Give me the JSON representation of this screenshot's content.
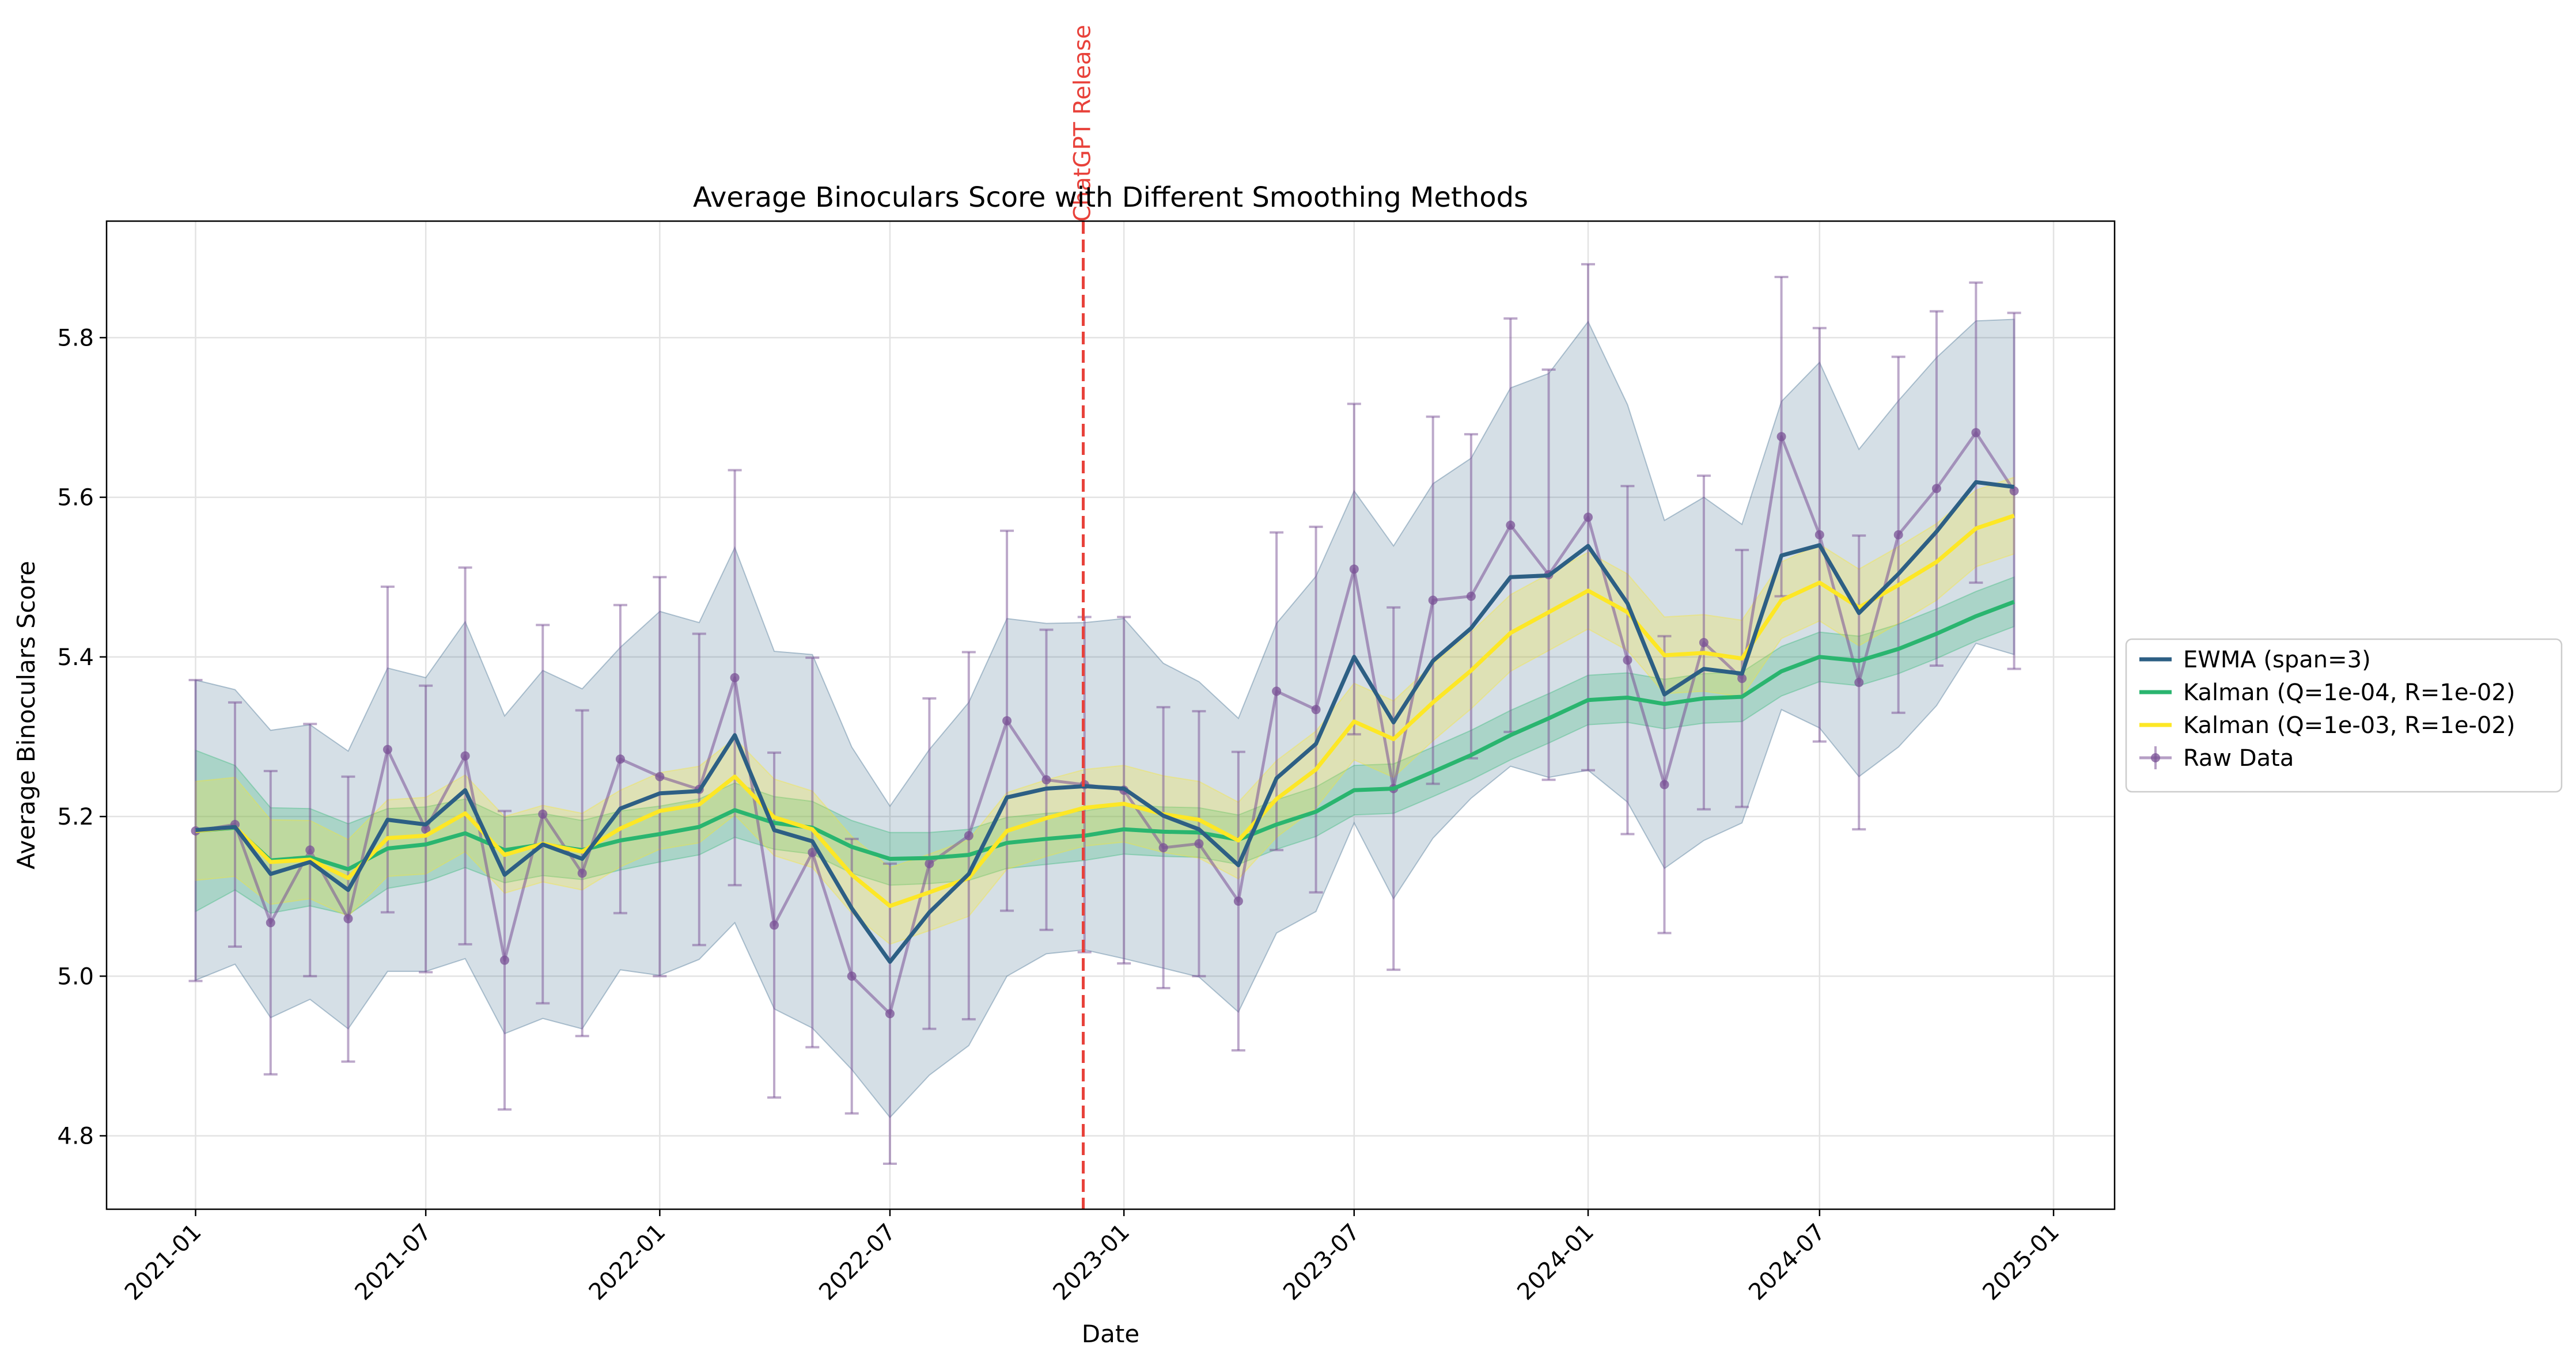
{
  "chart_data": {
    "type": "line",
    "title": "Average Binoculars Score with Different Smoothing Methods",
    "xlabel": "Date",
    "ylabel": "Average Binoculars Score",
    "xlim": [
      "2020-10-23",
      "2025-02-18"
    ],
    "ylim": [
      4.708,
      5.946
    ],
    "x_ticks": [
      "2021-01",
      "2021-07",
      "2022-01",
      "2022-07",
      "2023-01",
      "2023-07",
      "2024-01",
      "2024-07",
      "2025-01"
    ],
    "y_ticks": [
      4.8,
      5.0,
      5.2,
      5.4,
      5.6,
      5.8
    ],
    "grid": true,
    "legend_position": "center-right outside",
    "annotations": [
      {
        "type": "vertical-line",
        "x": "2022-11-30",
        "label": "ChatGPT Release",
        "color": "#e8413a"
      }
    ],
    "x": [
      "2021-01-01",
      "2021-02-01",
      "2021-03-01",
      "2021-04-01",
      "2021-05-01",
      "2021-06-01",
      "2021-07-01",
      "2021-08-01",
      "2021-09-01",
      "2021-10-01",
      "2021-11-01",
      "2021-12-01",
      "2022-01-01",
      "2022-02-01",
      "2022-03-01",
      "2022-04-01",
      "2022-05-01",
      "2022-06-01",
      "2022-07-01",
      "2022-08-01",
      "2022-09-01",
      "2022-10-01",
      "2022-11-01",
      "2022-12-01",
      "2023-01-01",
      "2023-02-01",
      "2023-03-01",
      "2023-04-01",
      "2023-05-01",
      "2023-06-01",
      "2023-07-01",
      "2023-08-01",
      "2023-09-01",
      "2023-10-01",
      "2023-11-01",
      "2023-12-01",
      "2024-01-01",
      "2024-02-01",
      "2024-03-01",
      "2024-04-01",
      "2024-05-01",
      "2024-06-01",
      "2024-07-01",
      "2024-08-01",
      "2024-09-01",
      "2024-10-01",
      "2024-11-01",
      "2024-12-01"
    ],
    "series": [
      {
        "name": "EWMA (span=3)",
        "color": "#2d5f84",
        "values": [
          5.183,
          5.187,
          5.128,
          5.143,
          5.108,
          5.196,
          5.19,
          5.233,
          5.127,
          5.165,
          5.147,
          5.21,
          5.229,
          5.232,
          5.302,
          5.183,
          5.169,
          5.085,
          5.018,
          5.08,
          5.128,
          5.224,
          5.235,
          5.238,
          5.235,
          5.201,
          5.184,
          5.139,
          5.248,
          5.291,
          5.4,
          5.318,
          5.395,
          5.436,
          5.5,
          5.502,
          5.539,
          5.467,
          5.353,
          5.385,
          5.379,
          5.527,
          5.54,
          5.455,
          5.504,
          5.557,
          5.619,
          5.613
        ],
        "band": [
          [
            4.995,
            5.371
          ],
          [
            5.015,
            5.359
          ],
          [
            4.948,
            5.308
          ],
          [
            4.971,
            5.315
          ],
          [
            4.934,
            5.282
          ],
          [
            5.006,
            5.386
          ],
          [
            5.006,
            5.374
          ],
          [
            5.022,
            5.444
          ],
          [
            4.928,
            5.326
          ],
          [
            4.947,
            5.383
          ],
          [
            4.934,
            5.36
          ],
          [
            5.008,
            5.412
          ],
          [
            5.001,
            5.457
          ],
          [
            5.021,
            5.443
          ],
          [
            5.067,
            5.537
          ],
          [
            4.959,
            5.407
          ],
          [
            4.935,
            5.403
          ],
          [
            4.883,
            5.287
          ],
          [
            4.823,
            5.213
          ],
          [
            4.876,
            5.284
          ],
          [
            4.913,
            5.343
          ],
          [
            5.0,
            5.448
          ],
          [
            5.028,
            5.442
          ],
          [
            5.033,
            5.443
          ],
          [
            5.022,
            5.448
          ],
          [
            5.01,
            5.392
          ],
          [
            4.999,
            5.369
          ],
          [
            4.955,
            5.323
          ],
          [
            5.054,
            5.442
          ],
          [
            5.081,
            5.501
          ],
          [
            5.192,
            5.608
          ],
          [
            5.097,
            5.539
          ],
          [
            5.173,
            5.617
          ],
          [
            5.223,
            5.649
          ],
          [
            5.263,
            5.737
          ],
          [
            5.249,
            5.755
          ],
          [
            5.258,
            5.82
          ],
          [
            5.218,
            5.716
          ],
          [
            5.135,
            5.571
          ],
          [
            5.17,
            5.6
          ],
          [
            5.192,
            5.566
          ],
          [
            5.334,
            5.72
          ],
          [
            5.311,
            5.769
          ],
          [
            5.25,
            5.66
          ],
          [
            5.287,
            5.721
          ],
          [
            5.339,
            5.775
          ],
          [
            5.417,
            5.821
          ],
          [
            5.403,
            5.823
          ]
        ]
      },
      {
        "name": "Kalman (Q=1e-04, R=1e-02)",
        "color": "#2ab56f",
        "values": [
          5.182,
          5.186,
          5.145,
          5.149,
          5.134,
          5.16,
          5.165,
          5.179,
          5.158,
          5.165,
          5.158,
          5.17,
          5.178,
          5.187,
          5.208,
          5.192,
          5.186,
          5.162,
          5.147,
          5.148,
          5.152,
          5.167,
          5.172,
          5.176,
          5.184,
          5.181,
          5.18,
          5.171,
          5.19,
          5.206,
          5.233,
          5.235,
          5.256,
          5.277,
          5.302,
          5.323,
          5.346,
          5.349,
          5.341,
          5.348,
          5.35,
          5.382,
          5.4,
          5.395,
          5.41,
          5.429,
          5.451,
          5.469
        ],
        "band": [
          [
            5.081,
            5.283
          ],
          [
            5.108,
            5.264
          ],
          [
            5.079,
            5.211
          ],
          [
            5.088,
            5.21
          ],
          [
            5.077,
            5.191
          ],
          [
            5.11,
            5.21
          ],
          [
            5.118,
            5.212
          ],
          [
            5.136,
            5.222
          ],
          [
            5.117,
            5.199
          ],
          [
            5.126,
            5.204
          ],
          [
            5.121,
            5.195
          ],
          [
            5.133,
            5.207
          ],
          [
            5.143,
            5.213
          ],
          [
            5.152,
            5.222
          ],
          [
            5.174,
            5.242
          ],
          [
            5.159,
            5.225
          ],
          [
            5.153,
            5.219
          ],
          [
            5.129,
            5.195
          ],
          [
            5.114,
            5.18
          ],
          [
            5.116,
            5.18
          ],
          [
            5.12,
            5.184
          ],
          [
            5.135,
            5.199
          ],
          [
            5.14,
            5.204
          ],
          [
            5.145,
            5.207
          ],
          [
            5.153,
            5.215
          ],
          [
            5.15,
            5.212
          ],
          [
            5.149,
            5.211
          ],
          [
            5.14,
            5.202
          ],
          [
            5.159,
            5.221
          ],
          [
            5.175,
            5.237
          ],
          [
            5.202,
            5.264
          ],
          [
            5.204,
            5.266
          ],
          [
            5.225,
            5.287
          ],
          [
            5.246,
            5.308
          ],
          [
            5.271,
            5.333
          ],
          [
            5.292,
            5.354
          ],
          [
            5.315,
            5.377
          ],
          [
            5.318,
            5.38
          ],
          [
            5.31,
            5.372
          ],
          [
            5.317,
            5.379
          ],
          [
            5.319,
            5.381
          ],
          [
            5.351,
            5.413
          ],
          [
            5.369,
            5.431
          ],
          [
            5.364,
            5.426
          ],
          [
            5.379,
            5.441
          ],
          [
            5.398,
            5.46
          ],
          [
            5.42,
            5.482
          ],
          [
            5.438,
            5.5
          ]
        ]
      },
      {
        "name": "Kalman (Q=1e-03, R=1e-02)",
        "color": "#fde725",
        "values": [
          5.182,
          5.187,
          5.143,
          5.146,
          5.123,
          5.173,
          5.176,
          5.204,
          5.152,
          5.166,
          5.156,
          5.185,
          5.207,
          5.215,
          5.25,
          5.199,
          5.184,
          5.127,
          5.088,
          5.105,
          5.123,
          5.182,
          5.198,
          5.211,
          5.216,
          5.203,
          5.196,
          5.17,
          5.222,
          5.259,
          5.319,
          5.297,
          5.343,
          5.383,
          5.43,
          5.456,
          5.483,
          5.456,
          5.402,
          5.405,
          5.398,
          5.471,
          5.493,
          5.462,
          5.49,
          5.519,
          5.561,
          5.577
        ],
        "band": [
          [
            5.12,
            5.244
          ],
          [
            5.125,
            5.249
          ],
          [
            5.09,
            5.196
          ],
          [
            5.097,
            5.195
          ],
          [
            5.075,
            5.171
          ],
          [
            5.125,
            5.221
          ],
          [
            5.128,
            5.224
          ],
          [
            5.156,
            5.252
          ],
          [
            5.104,
            5.2
          ],
          [
            5.118,
            5.214
          ],
          [
            5.108,
            5.204
          ],
          [
            5.137,
            5.233
          ],
          [
            5.159,
            5.255
          ],
          [
            5.167,
            5.263
          ],
          [
            5.202,
            5.298
          ],
          [
            5.151,
            5.247
          ],
          [
            5.136,
            5.232
          ],
          [
            5.079,
            5.175
          ],
          [
            5.04,
            5.136
          ],
          [
            5.057,
            5.153
          ],
          [
            5.075,
            5.171
          ],
          [
            5.134,
            5.23
          ],
          [
            5.15,
            5.246
          ],
          [
            5.163,
            5.259
          ],
          [
            5.168,
            5.264
          ],
          [
            5.155,
            5.251
          ],
          [
            5.148,
            5.244
          ],
          [
            5.122,
            5.218
          ],
          [
            5.174,
            5.27
          ],
          [
            5.211,
            5.307
          ],
          [
            5.271,
            5.367
          ],
          [
            5.249,
            5.345
          ],
          [
            5.295,
            5.391
          ],
          [
            5.335,
            5.431
          ],
          [
            5.382,
            5.478
          ],
          [
            5.408,
            5.504
          ],
          [
            5.435,
            5.531
          ],
          [
            5.408,
            5.504
          ],
          [
            5.354,
            5.45
          ],
          [
            5.357,
            5.453
          ],
          [
            5.35,
            5.446
          ],
          [
            5.423,
            5.519
          ],
          [
            5.445,
            5.541
          ],
          [
            5.414,
            5.51
          ],
          [
            5.442,
            5.538
          ],
          [
            5.471,
            5.567
          ],
          [
            5.513,
            5.609
          ],
          [
            5.529,
            5.625
          ]
        ]
      },
      {
        "name": "Raw Data",
        "color": "#7a5195",
        "values": [
          5.182,
          5.19,
          5.067,
          5.158,
          5.072,
          5.284,
          5.184,
          5.276,
          5.02,
          5.203,
          5.129,
          5.272,
          5.25,
          5.234,
          5.374,
          5.064,
          5.155,
          5.0,
          4.953,
          5.141,
          5.176,
          5.32,
          5.246,
          5.24,
          5.233,
          5.161,
          5.166,
          5.094,
          5.357,
          5.334,
          5.51,
          5.235,
          5.471,
          5.476,
          5.565,
          5.503,
          5.575,
          5.396,
          5.24,
          5.418,
          5.373,
          5.676,
          5.553,
          5.368,
          5.553,
          5.611,
          5.681,
          5.608
        ],
        "error": [
          [
            4.994,
            5.371
          ],
          [
            5.037,
            5.343
          ],
          [
            4.877,
            5.257
          ],
          [
            5.0,
            5.316
          ],
          [
            4.893,
            5.25
          ],
          [
            5.08,
            5.488
          ],
          [
            5.005,
            5.364
          ],
          [
            5.04,
            5.512
          ],
          [
            4.833,
            5.207
          ],
          [
            4.966,
            5.44
          ],
          [
            4.925,
            5.333
          ],
          [
            5.079,
            5.465
          ],
          [
            5.0,
            5.5
          ],
          [
            5.039,
            5.429
          ],
          [
            5.114,
            5.634
          ],
          [
            4.848,
            5.28
          ],
          [
            4.911,
            5.399
          ],
          [
            4.828,
            5.172
          ],
          [
            4.765,
            5.141
          ],
          [
            4.934,
            5.348
          ],
          [
            4.946,
            5.406
          ],
          [
            5.082,
            5.558
          ],
          [
            5.058,
            5.434
          ],
          [
            5.03,
            5.45
          ],
          [
            5.016,
            5.45
          ],
          [
            4.985,
            5.337
          ],
          [
            5.0,
            5.332
          ],
          [
            4.907,
            5.281
          ],
          [
            5.158,
            5.556
          ],
          [
            5.105,
            5.563
          ],
          [
            5.303,
            5.717
          ],
          [
            5.008,
            5.462
          ],
          [
            5.241,
            5.701
          ],
          [
            5.273,
            5.679
          ],
          [
            5.306,
            5.824
          ],
          [
            5.246,
            5.76
          ],
          [
            5.258,
            5.892
          ],
          [
            5.178,
            5.614
          ],
          [
            5.054,
            5.426
          ],
          [
            5.209,
            5.627
          ],
          [
            5.212,
            5.534
          ],
          [
            5.476,
            5.876
          ],
          [
            5.294,
            5.812
          ],
          [
            5.184,
            5.552
          ],
          [
            5.33,
            5.776
          ],
          [
            5.389,
            5.833
          ],
          [
            5.493,
            5.869
          ],
          [
            5.385,
            5.831
          ]
        ]
      }
    ]
  }
}
